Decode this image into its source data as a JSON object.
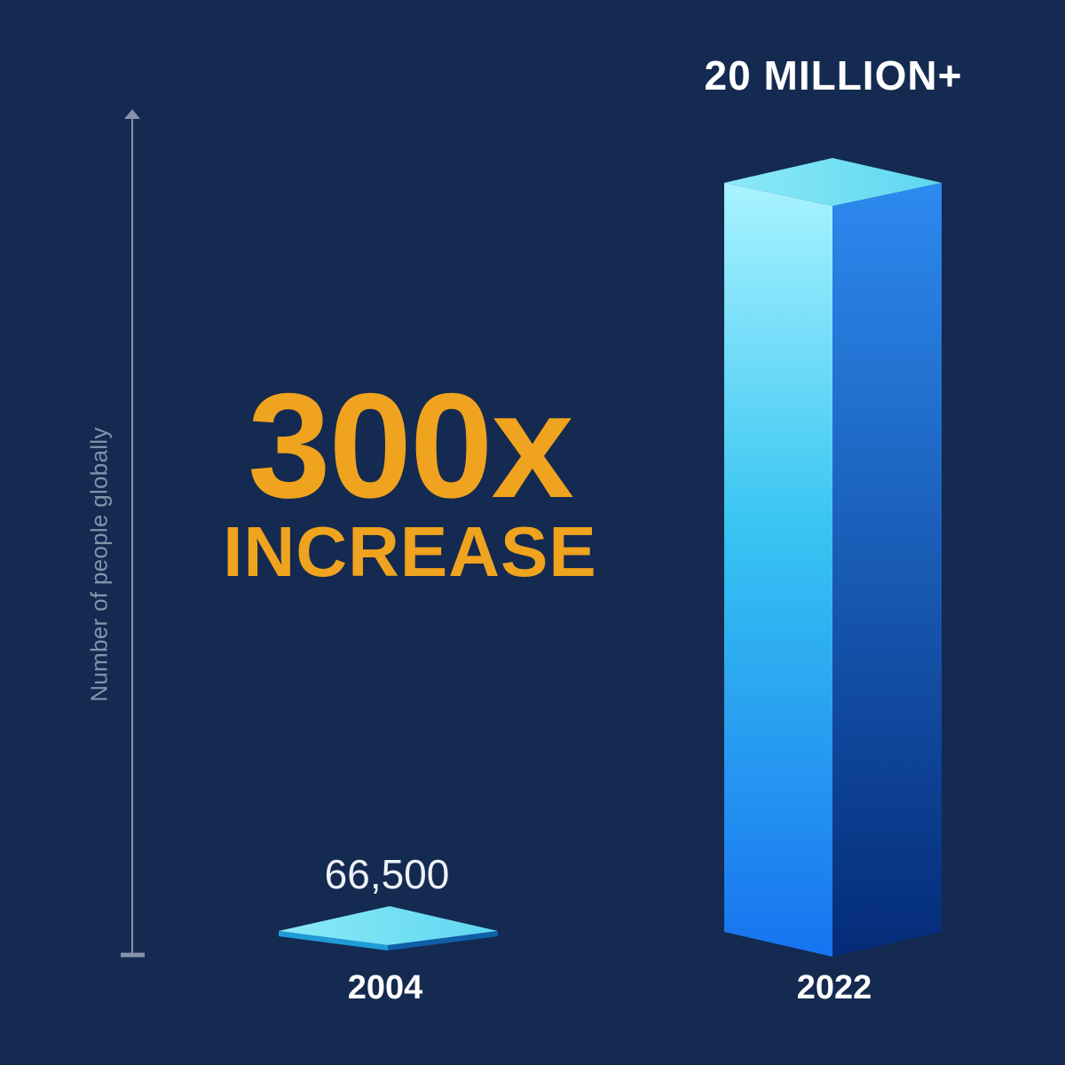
{
  "chart_data": {
    "type": "bar",
    "categories": [
      "2004",
      "2022"
    ],
    "values": [
      66500,
      20000000
    ],
    "value_labels": [
      "66,500",
      "20 MILLION+"
    ],
    "ylabel": "Number of people globally",
    "annotation": {
      "headline": "300x",
      "subheadline": "INCREASE"
    },
    "grid": false
  },
  "colors": {
    "background": "#142a50",
    "bar_front_top": "#a9f3ff",
    "bar_front_bottom": "#1773f0",
    "bar_side_top": "#2d8af0",
    "bar_side_bottom": "#042b78",
    "bar_top_face": "#7fe6f5",
    "headline": "#f0a31e",
    "axis": "#8593ab"
  }
}
